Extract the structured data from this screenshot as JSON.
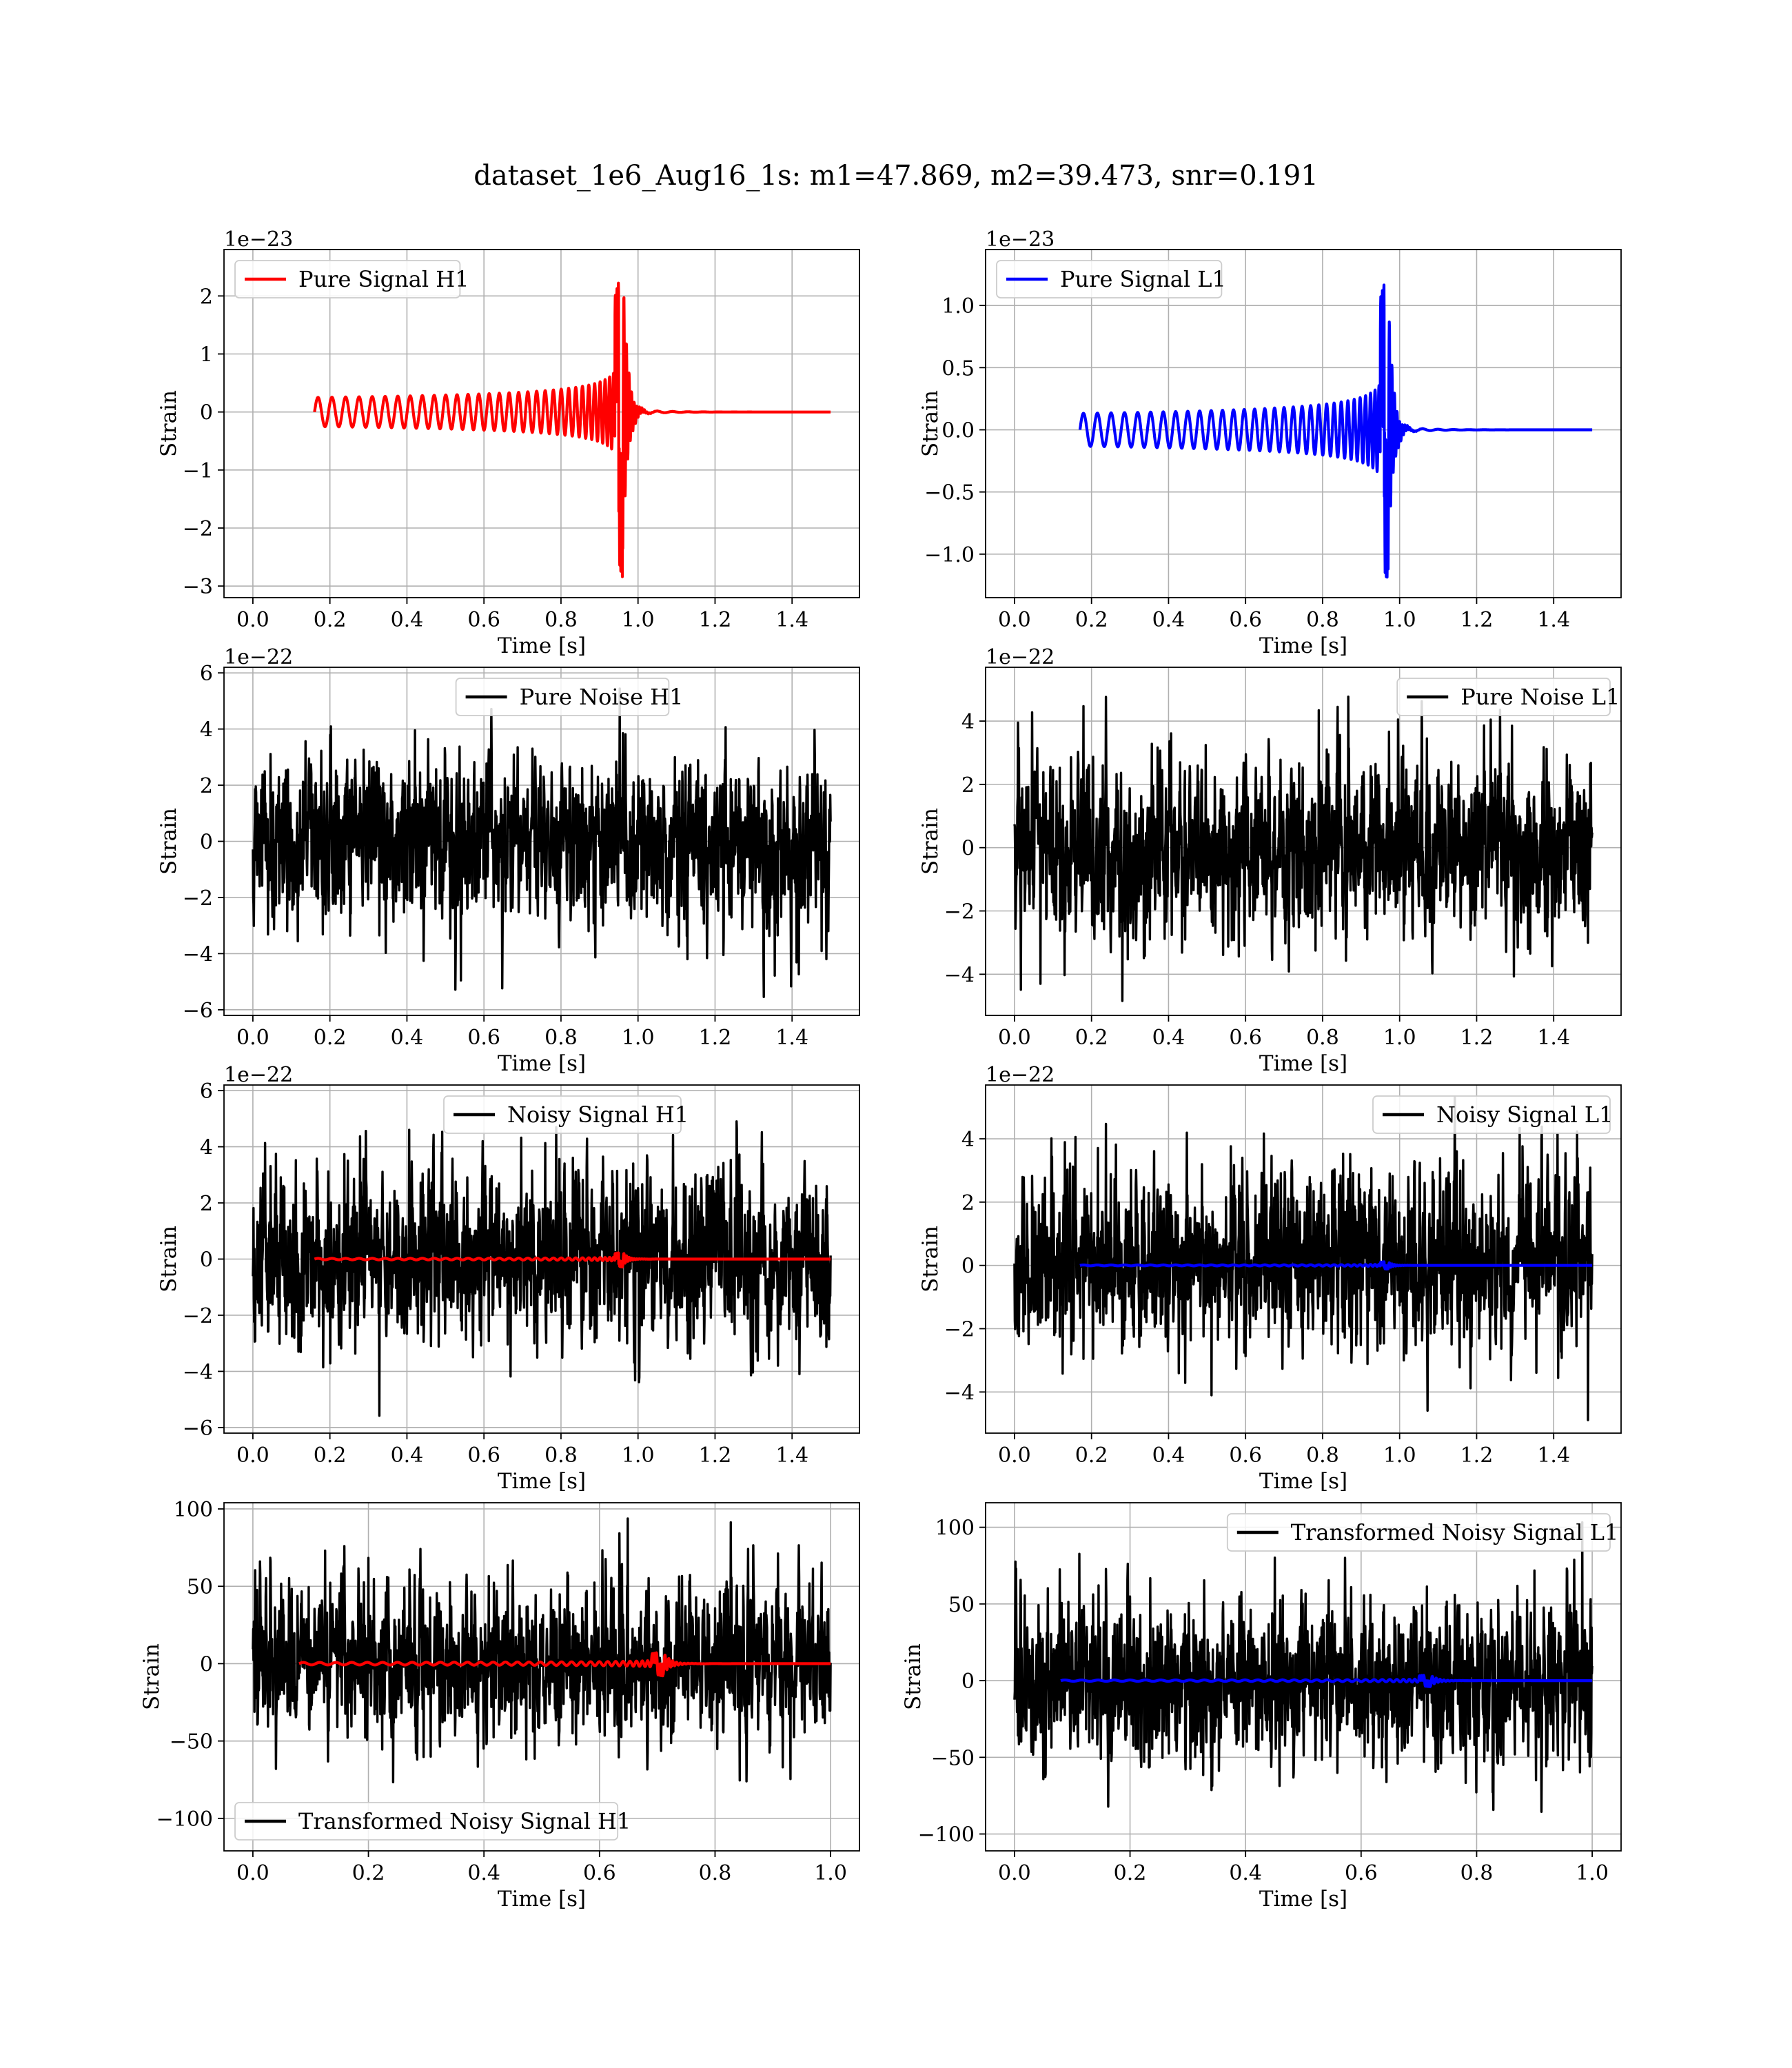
{
  "title": "dataset_1e6_Aug16_1s: m1=47.869, m2=39.473, snr=0.191",
  "chart_data": [
    {
      "type": "line",
      "name": "pure-signal-h1",
      "xlabel": "Time [s]",
      "ylabel": "Strain",
      "offset": "1e−23",
      "xlim": [
        -0.075,
        1.575
      ],
      "ylim": [
        -3.2,
        2.8
      ],
      "xticks": [
        0.0,
        0.2,
        0.4,
        0.6,
        0.8,
        1.0,
        1.2,
        1.4
      ],
      "yticks": [
        -3,
        -2,
        -1,
        0,
        1,
        2
      ],
      "grid": true,
      "legend_position": "upper left",
      "series": [
        {
          "name": "Pure Signal H1",
          "color": "#ff0000",
          "kind": "chirp",
          "t_start": 0.16,
          "t_merge": 0.96,
          "t_end": 1.5,
          "peak_pos": 2.5,
          "peak_neg": -2.9
        }
      ]
    },
    {
      "type": "line",
      "name": "pure-signal-l1",
      "xlabel": "Time [s]",
      "ylabel": "Strain",
      "offset": "1e−23",
      "xlim": [
        -0.075,
        1.575
      ],
      "ylim": [
        -1.35,
        1.45
      ],
      "xticks": [
        0.0,
        0.2,
        0.4,
        0.6,
        0.8,
        1.0,
        1.2,
        1.4
      ],
      "yticks": [
        -1.0,
        -0.5,
        0.0,
        0.5,
        1.0
      ],
      "grid": true,
      "legend_position": "upper left",
      "series": [
        {
          "name": "Pure Signal L1",
          "color": "#0000ff",
          "kind": "chirp",
          "t_start": 0.17,
          "t_merge": 0.97,
          "t_end": 1.5,
          "peak_pos": 1.32,
          "peak_neg": -1.25
        }
      ]
    },
    {
      "type": "line",
      "name": "pure-noise-h1",
      "xlabel": "Time [s]",
      "ylabel": "Strain",
      "offset": "1e−22",
      "xlim": [
        -0.075,
        1.575
      ],
      "ylim": [
        -6.2,
        6.2
      ],
      "xticks": [
        0.0,
        0.2,
        0.4,
        0.6,
        0.8,
        1.0,
        1.2,
        1.4
      ],
      "yticks": [
        -6,
        -4,
        -2,
        0,
        2,
        4,
        6
      ],
      "grid": true,
      "legend_position": "upper center",
      "series": [
        {
          "name": "Pure Noise H1",
          "color": "#000000",
          "kind": "noise",
          "t_start": 0.0,
          "t_end": 1.5,
          "max": 5.7,
          "min": -5.7
        }
      ]
    },
    {
      "type": "line",
      "name": "pure-noise-l1",
      "xlabel": "Time [s]",
      "ylabel": "Strain",
      "offset": "1e−22",
      "xlim": [
        -0.075,
        1.575
      ],
      "ylim": [
        -5.3,
        5.7
      ],
      "xticks": [
        0.0,
        0.2,
        0.4,
        0.6,
        0.8,
        1.0,
        1.2,
        1.4
      ],
      "yticks": [
        -4,
        -2,
        0,
        2,
        4
      ],
      "grid": true,
      "legend_position": "upper right",
      "series": [
        {
          "name": "Pure Noise L1",
          "color": "#000000",
          "kind": "noise",
          "t_start": 0.0,
          "t_end": 1.5,
          "max": 5.4,
          "min": -4.9
        }
      ]
    },
    {
      "type": "line",
      "name": "noisy-signal-h1",
      "xlabel": "Time [s]",
      "ylabel": "Strain",
      "offset": "1e−22",
      "xlim": [
        -0.075,
        1.575
      ],
      "ylim": [
        -6.2,
        6.2
      ],
      "xticks": [
        0.0,
        0.2,
        0.4,
        0.6,
        0.8,
        1.0,
        1.2,
        1.4
      ],
      "yticks": [
        -6,
        -4,
        -2,
        0,
        2,
        4,
        6
      ],
      "grid": true,
      "legend_position": "upper center",
      "series": [
        {
          "name": "Noisy Signal H1",
          "color": "#000000",
          "kind": "noise",
          "t_start": 0.0,
          "t_end": 1.5,
          "max": 5.7,
          "min": -5.7
        },
        {
          "color": "#ff0000",
          "kind": "chirp",
          "t_start": 0.16,
          "t_merge": 0.96,
          "t_end": 1.5,
          "peak_pos": 0.25,
          "peak_neg": -0.29
        }
      ]
    },
    {
      "type": "line",
      "name": "noisy-signal-l1",
      "xlabel": "Time [s]",
      "ylabel": "Strain",
      "offset": "1e−22",
      "xlim": [
        -0.075,
        1.575
      ],
      "ylim": [
        -5.3,
        5.7
      ],
      "xticks": [
        0.0,
        0.2,
        0.4,
        0.6,
        0.8,
        1.0,
        1.2,
        1.4
      ],
      "yticks": [
        -4,
        -2,
        0,
        2,
        4
      ],
      "grid": true,
      "legend_position": "upper right",
      "series": [
        {
          "name": "Noisy Signal L1",
          "color": "#000000",
          "kind": "noise",
          "t_start": 0.0,
          "t_end": 1.5,
          "max": 5.4,
          "min": -4.9
        },
        {
          "color": "#0000ff",
          "kind": "chirp",
          "t_start": 0.17,
          "t_merge": 0.97,
          "t_end": 1.5,
          "peak_pos": 0.13,
          "peak_neg": -0.12
        }
      ]
    },
    {
      "type": "line",
      "name": "transformed-noisy-signal-h1",
      "xlabel": "Time [s]",
      "ylabel": "Strain",
      "offset": "",
      "xlim": [
        -0.05,
        1.05
      ],
      "ylim": [
        -121,
        104
      ],
      "xticks": [
        0.0,
        0.2,
        0.4,
        0.6,
        0.8,
        1.0
      ],
      "yticks": [
        -100,
        -50,
        0,
        50,
        100
      ],
      "grid": true,
      "legend_position": "lower left",
      "series": [
        {
          "name": "Transformed Noisy Signal H1",
          "color": "#000000",
          "kind": "noise",
          "t_start": 0.0,
          "t_end": 1.0,
          "max": 95,
          "min": -103
        },
        {
          "color": "#ff0000",
          "kind": "chirp",
          "t_start": 0.08,
          "t_merge": 0.71,
          "t_end": 1.0,
          "peak_pos": 8,
          "peak_neg": -8
        }
      ]
    },
    {
      "type": "line",
      "name": "transformed-noisy-signal-l1",
      "xlabel": "Time [s]",
      "ylabel": "Strain",
      "offset": "",
      "xlim": [
        -0.05,
        1.05
      ],
      "ylim": [
        -111,
        116
      ],
      "xticks": [
        0.0,
        0.2,
        0.4,
        0.6,
        0.8,
        1.0
      ],
      "yticks": [
        -100,
        -50,
        0,
        50,
        100
      ],
      "grid": true,
      "legend_position": "upper right",
      "series": [
        {
          "name": "Transformed Noisy Signal L1",
          "color": "#000000",
          "kind": "noise",
          "t_start": 0.0,
          "t_end": 1.0,
          "max": 109,
          "min": -101
        },
        {
          "color": "#0000ff",
          "kind": "chirp",
          "t_start": 0.08,
          "t_merge": 0.72,
          "t_end": 1.0,
          "peak_pos": 4,
          "peak_neg": -4
        }
      ]
    }
  ]
}
